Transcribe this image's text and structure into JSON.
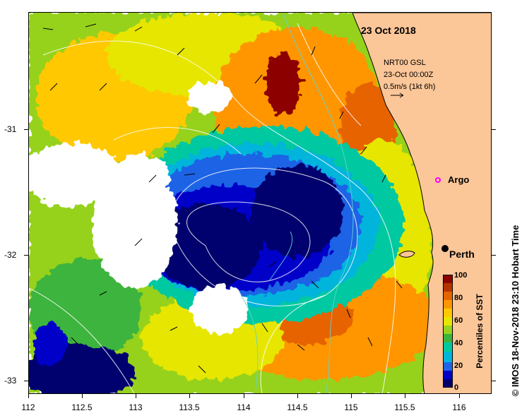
{
  "map": {
    "date_label": "23 Oct 2018",
    "product_line1": "NRT00 GSL",
    "product_line2": "23-Oct 00:00Z",
    "vector_scale": "0.5m/s (1kt 6h)",
    "argo_label": "Argo",
    "city_label": "Perth",
    "credit": "© IMOS 18-Nov-2018 23:10 Hobart Time",
    "x_ticks": [
      "112",
      "112.5",
      "113",
      "113.5",
      "114",
      "114.5",
      "115",
      "115.5",
      "116"
    ],
    "y_ticks": [
      "-31",
      "-32",
      "-33"
    ],
    "colors": {
      "land": "#fbc698",
      "argo_marker": "#ff00ff",
      "city_marker": "#000000"
    }
  },
  "colorbar": {
    "title": "Percentiles of SST",
    "labels": [
      "100",
      "80",
      "60",
      "40",
      "20",
      "0"
    ],
    "colors": [
      "#00006e",
      "#0000c8",
      "#1e64e6",
      "#00b4dc",
      "#00c8a0",
      "#3cb43c",
      "#96d21e",
      "#e6e600",
      "#ffc800",
      "#ff9600",
      "#e66400",
      "#b43200",
      "#8c0000"
    ]
  }
}
